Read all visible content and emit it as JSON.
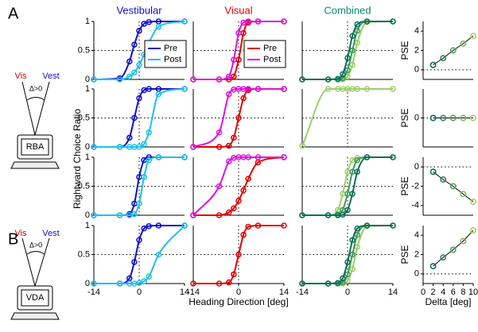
{
  "labels": {
    "panel_a": "A",
    "panel_b": "B",
    "y_label": "Rightward Choice Ratio",
    "icon_a": {
      "vis": "Vis",
      "vest": "Vest",
      "delta": "Δ>0",
      "device": "RBA"
    },
    "icon_b": {
      "vis": "Vis",
      "vest": "Vest",
      "delta": "Δ>0",
      "device": "VDA"
    }
  },
  "chart_data": [
    {
      "type": "line",
      "title": "Vestibular",
      "title_color": "#1010c8",
      "x": [
        -14,
        -6,
        -3,
        -1.5,
        0,
        1.5,
        3,
        6,
        14
      ],
      "xlim": [
        -14,
        14
      ],
      "ylim": [
        0,
        1
      ],
      "yticks": [
        0,
        0.5,
        1
      ],
      "series": [
        {
          "name": "Pre",
          "color": "#1010c8",
          "values": [
            0,
            0.02,
            0.31,
            0.6,
            0.84,
            0.96,
            0.99,
            1,
            1
          ]
        },
        {
          "name": "Post",
          "color": "#20c0e8",
          "values": [
            0,
            0,
            0.05,
            0.12,
            0.25,
            0.43,
            0.63,
            0.91,
            1
          ]
        }
      ]
    },
    {
      "type": "line",
      "title": "Visual",
      "title_color": "#e00000",
      "x": [
        -14,
        -6,
        -3,
        -1.5,
        0,
        1.5,
        3,
        6,
        14
      ],
      "xlim": [
        -14,
        14
      ],
      "ylim": [
        0,
        1
      ],
      "series": [
        {
          "name": "Pre",
          "color": "#e00000",
          "values": [
            0,
            0,
            0,
            0.05,
            0.34,
            0.8,
            0.98,
            1,
            1
          ]
        },
        {
          "name": "Post",
          "color": "#e010e0",
          "values": [
            0,
            0,
            0.05,
            0.34,
            0.8,
            0.98,
            1,
            1,
            1
          ]
        }
      ]
    },
    {
      "type": "line",
      "title": "Combined",
      "title_color": "#0b8a6a",
      "x": [
        -14,
        -6,
        -3,
        -1.5,
        0,
        1.5,
        3,
        6,
        14
      ],
      "xlim": [
        -14,
        14
      ],
      "ylim": [
        0,
        1
      ],
      "series": [
        {
          "color": "#9ccf69",
          "values": [
            0,
            0,
            0,
            0,
            0.05,
            0.25,
            0.63,
            0.99,
            1
          ]
        },
        {
          "color": "#3f9c5a",
          "values": [
            0,
            0,
            0,
            0.02,
            0.16,
            0.5,
            0.84,
            1,
            1
          ]
        },
        {
          "color": "#0b6e58",
          "values": [
            0,
            0,
            0.01,
            0.09,
            0.37,
            0.75,
            0.95,
            1,
            1
          ]
        }
      ]
    },
    {
      "type": "scatter",
      "ylabel": "PSE",
      "x": [
        2,
        4,
        6,
        8,
        10
      ],
      "values": [
        0.5,
        1.2,
        2,
        2.7,
        3.5
      ],
      "colors": [
        "#0b6e58",
        "#2e8a5c",
        "#56a35e",
        "#7fbb62",
        "#a5d06a"
      ],
      "xlim": [
        0,
        10
      ],
      "ylim": [
        -1,
        5
      ],
      "yticks": [
        0,
        2,
        4
      ]
    },
    {
      "type": "line",
      "x": [
        -14,
        -6,
        -3,
        -1.5,
        0,
        1.5,
        3,
        6,
        14
      ],
      "xlim": [
        -14,
        14
      ],
      "ylim": [
        0,
        1
      ],
      "yticks": [
        0,
        0.5,
        1
      ],
      "series": [
        {
          "color": "#1010c8",
          "values": [
            0,
            0,
            0.16,
            0.5,
            0.84,
            0.98,
            1,
            1,
            1
          ]
        },
        {
          "color": "#20c0e8",
          "values": [
            0,
            0,
            0,
            0,
            0,
            0.05,
            0.25,
            0.91,
            1
          ]
        }
      ]
    },
    {
      "type": "line",
      "x": [
        -14,
        -6,
        -3,
        -1.5,
        0,
        1.5,
        3,
        6,
        14
      ],
      "xlim": [
        -14,
        14
      ],
      "ylim": [
        0,
        1
      ],
      "series": [
        {
          "color": "#e00000",
          "values": [
            0,
            0,
            0.02,
            0.16,
            0.5,
            0.84,
            0.98,
            1,
            1
          ]
        },
        {
          "color": "#e010e0",
          "values": [
            0,
            0.25,
            0.91,
            0.99,
            1,
            1,
            1,
            1,
            1
          ]
        }
      ]
    },
    {
      "type": "line",
      "x": [
        -14,
        -6,
        -3,
        -1.5,
        0,
        1.5,
        3,
        6,
        14
      ],
      "xlim": [
        -14,
        14
      ],
      "ylim": [
        0,
        1
      ],
      "series": [
        {
          "color": "#9ccf69",
          "values": [
            0.02,
            1,
            1,
            1,
            1,
            1,
            1,
            1,
            1
          ]
        }
      ]
    },
    {
      "type": "scatter",
      "ylabel": "PSE",
      "x": [
        2,
        4,
        6,
        8,
        10
      ],
      "values": [
        0,
        0,
        0,
        0,
        0
      ],
      "colors": [
        "#0b6e58",
        "#2e8a5c",
        "#56a35e",
        "#7fbb62",
        "#a5d06a"
      ],
      "xlim": [
        0,
        10
      ],
      "ylim": [
        -3,
        3
      ],
      "yticks": [
        0
      ]
    },
    {
      "type": "line",
      "x": [
        -14,
        -6,
        -3,
        -1.5,
        0,
        1.5,
        3,
        6,
        14
      ],
      "xlim": [
        -14,
        14
      ],
      "ylim": [
        0,
        1
      ],
      "yticks": [
        0,
        0.5,
        1
      ],
      "series": [
        {
          "color": "#1010c8",
          "values": [
            0,
            0,
            0.02,
            0.2,
            0.66,
            0.95,
            1,
            1,
            1
          ]
        },
        {
          "color": "#20c0e8",
          "values": [
            0,
            0,
            0,
            0.02,
            0.2,
            0.66,
            0.95,
            1,
            1
          ]
        }
      ]
    },
    {
      "type": "line",
      "x": [
        -14,
        -6,
        -3,
        -1.5,
        0,
        1.5,
        3,
        6,
        14
      ],
      "xlim": [
        -14,
        14
      ],
      "ylim": [
        0,
        1
      ],
      "series": [
        {
          "color": "#e00000",
          "values": [
            0,
            0,
            0.05,
            0.12,
            0.25,
            0.43,
            0.63,
            0.91,
            1
          ]
        },
        {
          "color": "#e010e0",
          "values": [
            0,
            0.5,
            0.93,
            0.99,
            1,
            1,
            1,
            1,
            1
          ]
        }
      ]
    },
    {
      "type": "line",
      "x": [
        -14,
        -6,
        -3,
        -1.5,
        0,
        1.5,
        3,
        6,
        14
      ],
      "xlim": [
        -14,
        14
      ],
      "ylim": [
        0,
        1
      ],
      "series": [
        {
          "color": "#9ccf69",
          "values": [
            0,
            0,
            0.09,
            0.37,
            0.75,
            0.95,
            0.99,
            1,
            1
          ]
        },
        {
          "color": "#3f9c5a",
          "values": [
            0,
            0,
            0.01,
            0.09,
            0.37,
            0.75,
            0.95,
            1,
            1
          ]
        },
        {
          "color": "#0b6e58",
          "values": [
            0,
            0,
            0,
            0.01,
            0.09,
            0.37,
            0.75,
            1,
            1
          ]
        }
      ]
    },
    {
      "type": "scatter",
      "ylabel": "PSE",
      "x": [
        2,
        4,
        6,
        8,
        10
      ],
      "values": [
        -0.5,
        -1.3,
        -2,
        -2.8,
        -3.6
      ],
      "colors": [
        "#0b6e58",
        "#2e8a5c",
        "#56a35e",
        "#7fbb62",
        "#a5d06a"
      ],
      "xlim": [
        0,
        10
      ],
      "ylim": [
        -5,
        1
      ],
      "yticks": [
        0,
        -2,
        -4
      ]
    },
    {
      "type": "line",
      "x": [
        -14,
        -6,
        -3,
        -1.5,
        0,
        1.5,
        3,
        6,
        14
      ],
      "xlim": [
        -14,
        14
      ],
      "ylim": [
        0,
        1
      ],
      "yticks": [
        0,
        0.5,
        1
      ],
      "xticks": [
        -14,
        0,
        14
      ],
      "series": [
        {
          "color": "#1010c8",
          "values": [
            0,
            0,
            0.09,
            0.37,
            0.75,
            0.95,
            0.99,
            1,
            1
          ]
        },
        {
          "color": "#20c0e8",
          "values": [
            0,
            0,
            0,
            0,
            0.01,
            0.04,
            0.12,
            0.5,
            1
          ]
        }
      ]
    },
    {
      "type": "line",
      "xlabel": "Heading Direction [deg]",
      "x": [
        -14,
        -6,
        -3,
        -1.5,
        0,
        1.5,
        3,
        6,
        14
      ],
      "xlim": [
        -14,
        14
      ],
      "ylim": [
        0,
        1
      ],
      "xticks": [
        -14,
        0,
        14
      ],
      "series": [
        {
          "color": "#e00000",
          "values": [
            0,
            0,
            0.02,
            0.16,
            0.5,
            0.84,
            0.98,
            1,
            1
          ]
        }
      ]
    },
    {
      "type": "line",
      "x": [
        -14,
        -6,
        -3,
        -1.5,
        0,
        1.5,
        3,
        6,
        14
      ],
      "xlim": [
        -14,
        14
      ],
      "ylim": [
        0,
        1
      ],
      "xticks": [
        -14,
        0,
        14
      ],
      "series": [
        {
          "color": "#9ccf69",
          "values": [
            0,
            0,
            0,
            0,
            0.05,
            0.25,
            0.63,
            0.99,
            1
          ]
        },
        {
          "color": "#3f9c5a",
          "values": [
            0,
            0,
            0,
            0.02,
            0.16,
            0.5,
            0.84,
            1,
            1
          ]
        },
        {
          "color": "#0b6e58",
          "values": [
            0,
            0,
            0.01,
            0.09,
            0.37,
            0.75,
            0.95,
            1,
            1
          ]
        }
      ]
    },
    {
      "type": "scatter",
      "ylabel": "PSE",
      "xlabel": "Delta [deg]",
      "x": [
        2,
        4,
        6,
        8,
        10
      ],
      "values": [
        0.8,
        1.7,
        2.5,
        3.4,
        4.5
      ],
      "colors": [
        "#0b6e58",
        "#2e8a5c",
        "#56a35e",
        "#7fbb62",
        "#a5d06a"
      ],
      "xlim": [
        0,
        10
      ],
      "ylim": [
        -1,
        5
      ],
      "yticks": [
        0,
        2,
        4
      ],
      "xticks": [
        0,
        2,
        4,
        6,
        8,
        10
      ]
    }
  ]
}
